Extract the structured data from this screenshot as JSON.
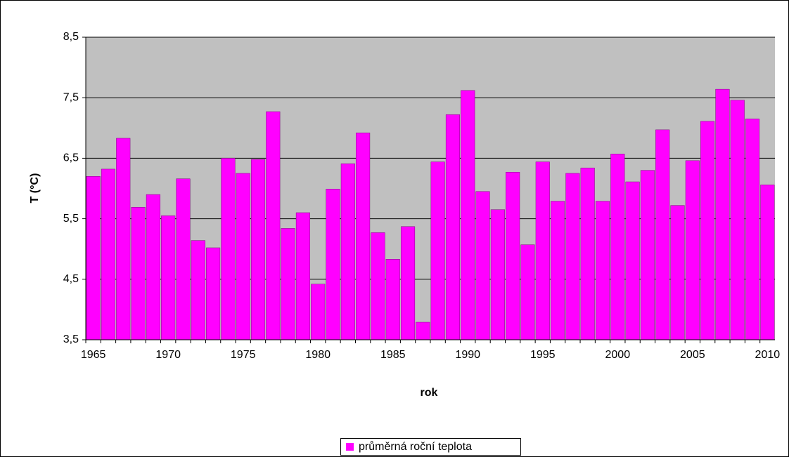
{
  "chart_data": {
    "type": "bar",
    "categories": [
      "1965",
      null,
      null,
      null,
      null,
      "1970",
      null,
      null,
      null,
      null,
      "1975",
      null,
      null,
      null,
      null,
      "1980",
      null,
      null,
      null,
      null,
      "1985",
      null,
      null,
      null,
      null,
      "1990",
      null,
      null,
      null,
      null,
      "1995",
      null,
      null,
      null,
      null,
      "2000",
      null,
      null,
      null,
      null,
      "2005",
      null,
      null,
      null,
      null,
      "2010"
    ],
    "series": [
      {
        "name": "průměrná roční teplota",
        "color": "#ff00ff",
        "values": [
          6.2,
          6.32,
          6.83,
          5.69,
          5.9,
          5.55,
          6.16,
          5.14,
          5.02,
          6.5,
          6.25,
          6.48,
          7.27,
          5.34,
          5.6,
          4.42,
          5.99,
          6.41,
          6.92,
          5.27,
          4.83,
          5.37,
          3.79,
          6.44,
          7.22,
          7.62,
          5.95,
          5.65,
          6.27,
          5.07,
          6.44,
          5.79,
          6.25,
          6.34,
          5.79,
          6.57,
          6.11,
          6.3,
          6.97,
          5.72,
          6.46,
          7.11,
          7.64,
          7.46,
          7.15,
          6.06
        ]
      }
    ],
    "x_label": "rok",
    "y_label": "T (°C)",
    "ylim": [
      3.5,
      8.5
    ],
    "yticks": [
      {
        "value": 3.5,
        "label": "3,5"
      },
      {
        "value": 4.5,
        "label": "4,5"
      },
      {
        "value": 5.5,
        "label": "5,5"
      },
      {
        "value": 6.5,
        "label": "6,5"
      },
      {
        "value": 7.5,
        "label": "7,5"
      },
      {
        "value": 8.5,
        "label": "8,5"
      }
    ],
    "grid": true,
    "legend": "bottom"
  }
}
